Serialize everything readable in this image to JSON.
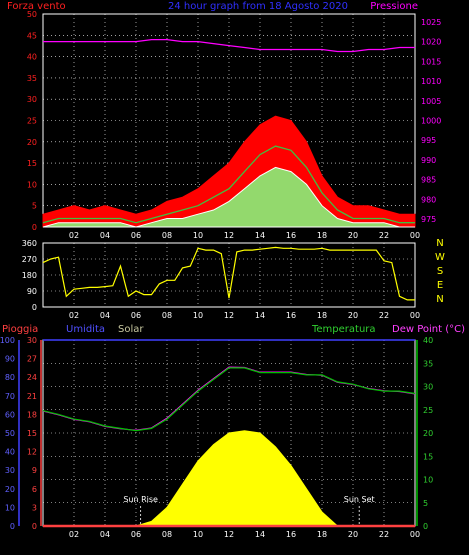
{
  "title": "24 hour graph from 18 Agosto 2020",
  "x_ticks": [
    "02",
    "04",
    "06",
    "08",
    "10",
    "12",
    "14",
    "16",
    "18",
    "20",
    "22",
    "00"
  ],
  "colors": {
    "background": "#000000",
    "grid": "#ffffff",
    "wind_gust": "#ff0000",
    "wind_avg": "#ffffff",
    "wind_avg_alt": "#80ff80",
    "wind_mid": "#40c040",
    "pressure": "#ff00ff",
    "direction": "#ffff00",
    "temperature": "#00c000",
    "dew_point": "#ff00ff",
    "humidity": "#4040ff",
    "solar": "#ffff00",
    "rain": "#ff4040"
  },
  "chart_data": [
    {
      "type": "line",
      "panel": "wind-pressure",
      "ylabel_left": "Forza vento",
      "ylabel_right": "Pressione",
      "ylim_left": [
        0,
        50
      ],
      "yticks_left": [
        0,
        5,
        10,
        15,
        20,
        25,
        30,
        35,
        40,
        45,
        50
      ],
      "ylim_right": [
        973,
        1027
      ],
      "yticks_right": [
        975,
        980,
        985,
        990,
        995,
        1000,
        1005,
        1010,
        1015,
        1020,
        1025
      ],
      "x": [
        0,
        1,
        2,
        3,
        4,
        5,
        6,
        7,
        8,
        9,
        10,
        11,
        12,
        13,
        14,
        15,
        16,
        17,
        18,
        19,
        20,
        21,
        22,
        23,
        24
      ],
      "series": [
        {
          "axis": "left",
          "role": "gust",
          "values": [
            3,
            4,
            5,
            4,
            5,
            4,
            3,
            4,
            6,
            7,
            9,
            12,
            15,
            20,
            24,
            26,
            25,
            20,
            12,
            7,
            5,
            5,
            4,
            3,
            3
          ]
        },
        {
          "axis": "left",
          "role": "mid",
          "values": [
            1,
            2,
            2,
            2,
            2,
            2,
            1,
            2,
            3,
            4,
            5,
            7,
            9,
            13,
            17,
            19,
            18,
            14,
            8,
            4,
            2,
            2,
            2,
            1,
            1
          ]
        },
        {
          "axis": "left",
          "role": "average",
          "values": [
            0,
            1,
            1,
            1,
            1,
            1,
            0,
            1,
            2,
            2,
            3,
            4,
            6,
            9,
            12,
            14,
            13,
            10,
            5,
            2,
            1,
            1,
            1,
            0,
            0
          ]
        },
        {
          "axis": "right",
          "role": "pressure",
          "values": [
            1020,
            1020,
            1020,
            1020,
            1020,
            1020,
            1020,
            1020.5,
            1020.5,
            1020,
            1020,
            1019.5,
            1019,
            1018.5,
            1018,
            1018,
            1018,
            1018,
            1018,
            1017.5,
            1017.5,
            1018,
            1018,
            1018.5,
            1018.5
          ]
        }
      ]
    },
    {
      "type": "line",
      "panel": "wind-direction",
      "ylim": [
        0,
        360
      ],
      "yticks": [
        0,
        90,
        180,
        270,
        360
      ],
      "compass": [
        "N",
        "W",
        "S",
        "E",
        "N"
      ],
      "x": [
        0,
        0.5,
        1,
        1.5,
        2,
        2.5,
        3,
        3.5,
        4,
        4.5,
        5,
        5.5,
        6,
        6.5,
        7,
        7.5,
        8,
        8.5,
        9,
        9.5,
        10,
        10.5,
        11,
        11.5,
        12,
        12.5,
        13,
        13.5,
        14,
        14.5,
        15,
        15.5,
        16,
        16.5,
        17,
        17.5,
        18,
        18.5,
        19,
        19.5,
        20,
        20.5,
        21,
        21.5,
        22,
        22.5,
        23,
        23.5,
        24
      ],
      "values": [
        250,
        270,
        280,
        60,
        100,
        105,
        110,
        110,
        115,
        120,
        230,
        60,
        90,
        70,
        70,
        130,
        150,
        150,
        220,
        230,
        330,
        320,
        320,
        300,
        50,
        310,
        320,
        320,
        325,
        330,
        335,
        330,
        330,
        325,
        325,
        325,
        330,
        320,
        320,
        320,
        320,
        320,
        320,
        320,
        260,
        250,
        60,
        40,
        40
      ]
    },
    {
      "type": "area",
      "panel": "temperature-solar",
      "labels": {
        "rain": "Pioggia",
        "humidity": "Umidita",
        "solar": "Solar",
        "temperature": "Temperatura",
        "dew_point": "Dew Point (°C)"
      },
      "axes": {
        "humidity": {
          "ylim": [
            0,
            100
          ],
          "yticks": [
            0,
            10,
            20,
            30,
            40,
            50,
            60,
            70,
            80,
            90,
            100
          ]
        },
        "rain": {
          "ylim": [
            0,
            30
          ],
          "yticks": [
            0,
            3,
            6,
            9,
            12,
            15,
            18,
            21,
            24,
            27,
            30
          ]
        },
        "temperature": {
          "ylim": [
            0,
            40
          ],
          "yticks": [
            0,
            5,
            10,
            15,
            20,
            25,
            30,
            35,
            40
          ]
        }
      },
      "annotations": [
        {
          "text": "Sun Rise",
          "x": 6.3
        },
        {
          "text": "Sun Set",
          "x": 20.4
        }
      ],
      "x": [
        0,
        1,
        2,
        3,
        4,
        5,
        6,
        7,
        8,
        9,
        10,
        11,
        12,
        13,
        14,
        15,
        16,
        17,
        18,
        19,
        20,
        21,
        22,
        23,
        24
      ],
      "series": [
        {
          "name": "Temperatura",
          "axis": "temperature",
          "values": [
            24.8,
            24,
            23,
            22.5,
            21.5,
            21,
            20.5,
            21,
            23,
            26,
            29,
            31.5,
            34,
            34,
            33,
            33,
            33,
            32.5,
            32.5,
            31,
            30.5,
            29.5,
            29,
            29,
            28.5
          ]
        },
        {
          "name": "Dew Point (°C)",
          "axis": "temperature",
          "values": [
            24.7,
            23.9,
            22.9,
            22.4,
            21.4,
            20.9,
            20.6,
            21.1,
            23.2,
            26.2,
            29.2,
            31.7,
            34.2,
            34.1,
            33.1,
            33.1,
            33.1,
            32.6,
            32.4,
            30.9,
            30.4,
            29.6,
            29.1,
            28.9,
            28.4
          ]
        },
        {
          "name": "Solar",
          "axis": "temperature",
          "values": [
            0,
            0,
            0,
            0,
            0,
            0,
            0,
            1,
            4,
            9,
            14,
            17.5,
            20,
            20.5,
            20,
            17,
            13,
            8,
            3,
            0,
            0,
            0,
            0,
            0,
            0
          ]
        },
        {
          "name": "Umidita",
          "axis": "humidity",
          "values": [
            100,
            100,
            100,
            100,
            100,
            100,
            100,
            100,
            100,
            100,
            100,
            100,
            100,
            100,
            100,
            100,
            100,
            100,
            100,
            100,
            100,
            100,
            100,
            100,
            100
          ]
        },
        {
          "name": "Pioggia",
          "axis": "rain",
          "values": [
            0,
            0,
            0,
            0,
            0,
            0,
            0,
            0,
            0,
            0,
            0,
            0,
            0,
            0,
            0,
            0,
            0,
            0,
            0,
            0,
            0,
            0,
            0,
            0,
            0
          ]
        }
      ]
    }
  ]
}
